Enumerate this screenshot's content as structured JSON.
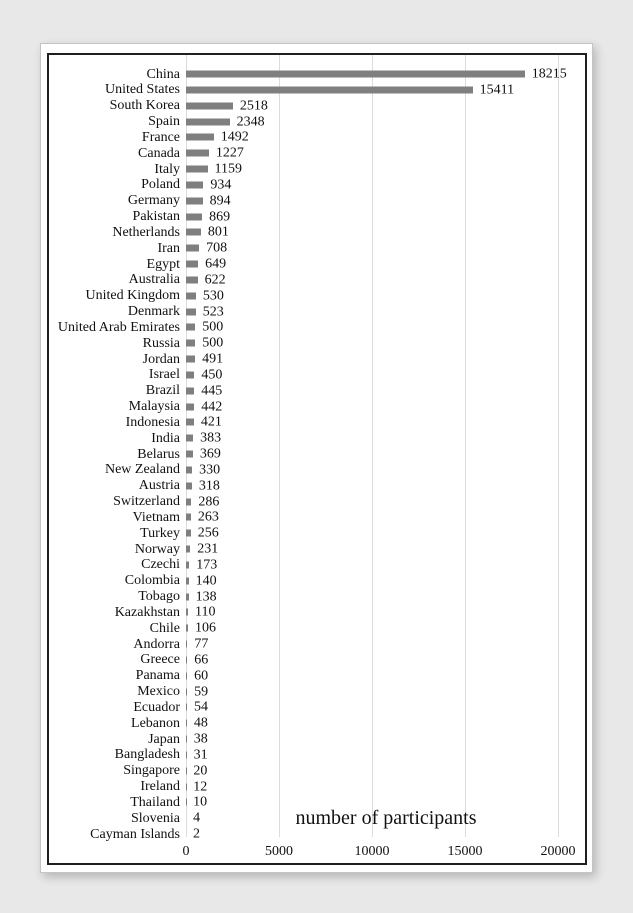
{
  "chart_data": {
    "type": "bar",
    "orientation": "horizontal",
    "xlabel": "number of participants",
    "xlim": [
      0,
      20000
    ],
    "x_ticks": [
      0,
      5000,
      10000,
      15000,
      20000
    ],
    "grid": "vertical",
    "legend": "none",
    "value_labels": true,
    "bar_color": "#7f7f7f",
    "gridline_color": "#dcdcdc",
    "categories": [
      "China",
      "United States",
      "South Korea",
      "Spain",
      "France",
      "Canada",
      "Italy",
      "Poland",
      "Germany",
      "Pakistan",
      "Netherlands",
      "Iran",
      "Egypt",
      "Australia",
      "United Kingdom",
      "Denmark",
      "United Arab Emirates",
      "Russia",
      "Jordan",
      "Israel",
      "Brazil",
      "Malaysia",
      "Indonesia",
      "India",
      "Belarus",
      "New Zealand",
      "Austria",
      "Switzerland",
      "Vietnam",
      "Turkey",
      "Norway",
      "Czechi",
      "Colombia",
      "Tobago",
      "Kazakhstan",
      "Chile",
      "Andorra",
      "Greece",
      "Panama",
      "Mexico",
      "Ecuador",
      "Lebanon",
      "Japan",
      "Bangladesh",
      "Singapore",
      "Ireland",
      "Thailand",
      "Slovenia",
      "Cayman Islands"
    ],
    "values": [
      18215,
      15411,
      2518,
      2348,
      1492,
      1227,
      1159,
      934,
      894,
      869,
      801,
      708,
      649,
      622,
      530,
      523,
      500,
      500,
      491,
      450,
      445,
      442,
      421,
      383,
      369,
      330,
      318,
      286,
      263,
      256,
      231,
      173,
      140,
      138,
      110,
      106,
      77,
      66,
      60,
      59,
      54,
      48,
      38,
      31,
      20,
      12,
      10,
      4,
      2
    ]
  }
}
